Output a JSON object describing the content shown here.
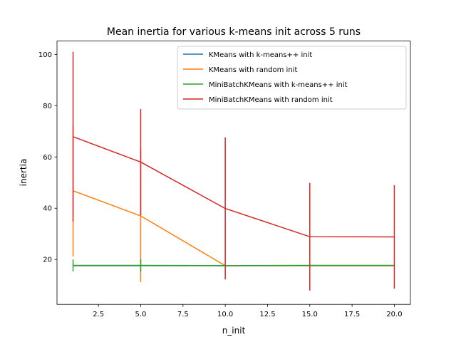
{
  "chart_data": {
    "type": "line",
    "title": "Mean inertia for various k-means init across 5 runs",
    "xlabel": "n_init",
    "ylabel": "inertia",
    "xlim": [
      0.05,
      20.95
    ],
    "ylim": [
      2.5,
      105.2
    ],
    "xticks": [
      2.5,
      5.0,
      7.5,
      10.0,
      12.5,
      15.0,
      17.5,
      20.0
    ],
    "xtick_labels": [
      "2.5",
      "5.0",
      "7.5",
      "10.0",
      "12.5",
      "15.0",
      "17.5",
      "20.0"
    ],
    "yticks": [
      20,
      40,
      60,
      80,
      100
    ],
    "ytick_labels": [
      "20",
      "40",
      "60",
      "80",
      "100"
    ],
    "grid": false,
    "legend_position": "top-right",
    "x": [
      1,
      5,
      10,
      15,
      20
    ],
    "series": [
      {
        "name": "KMeans with k-means++ init",
        "color": "#1f77b4",
        "values": [
          17.6,
          17.6,
          17.6,
          17.6,
          17.6
        ],
        "errors": [
          0.05,
          0.05,
          0.05,
          0.05,
          0.05
        ]
      },
      {
        "name": "KMeans with random init",
        "color": "#ff7f0e",
        "values": [
          46.8,
          37.0,
          17.6,
          17.6,
          17.6
        ],
        "errors": [
          25.6,
          25.8,
          0.1,
          0.1,
          0.1
        ]
      },
      {
        "name": "MiniBatchKMeans with k-means++ init",
        "color": "#2ca02c",
        "values": [
          17.7,
          17.7,
          17.6,
          17.7,
          17.7
        ],
        "errors": [
          2.3,
          2.5,
          0.1,
          0.1,
          0.1
        ]
      },
      {
        "name": "MiniBatchKMeans with random init",
        "color": "#d62728",
        "values": [
          67.9,
          58.0,
          39.9,
          28.9,
          28.8
        ],
        "errors": [
          33.1,
          20.7,
          27.7,
          21.0,
          20.2
        ]
      }
    ]
  }
}
